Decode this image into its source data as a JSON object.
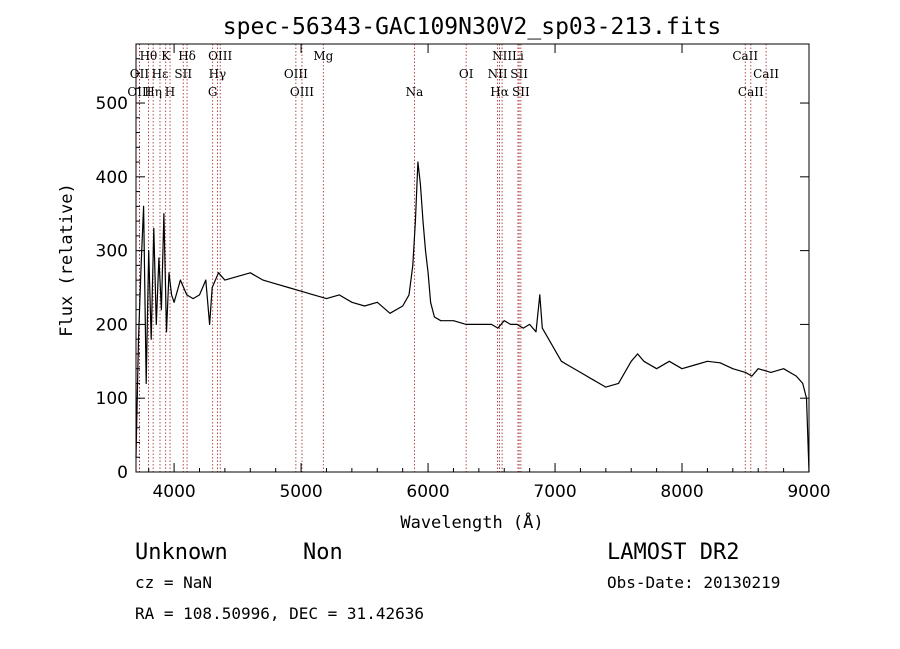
{
  "chart_data": {
    "type": "line",
    "title": "spec-56343-GAC109N30V2_sp03-213.fits",
    "xlabel": "Wavelength (Å)",
    "ylabel": "Flux (relative)",
    "xlim": [
      3700,
      9000
    ],
    "ylim": [
      0,
      580
    ],
    "x_ticks": [
      4000,
      5000,
      6000,
      7000,
      8000,
      9000
    ],
    "y_ticks": [
      0,
      100,
      200,
      300,
      400,
      500
    ],
    "series": [
      {
        "name": "flux",
        "x": [
          3700,
          3720,
          3740,
          3760,
          3780,
          3800,
          3820,
          3840,
          3860,
          3880,
          3900,
          3920,
          3940,
          3960,
          3980,
          4000,
          4050,
          4100,
          4150,
          4200,
          4250,
          4280,
          4300,
          4350,
          4400,
          4500,
          4600,
          4700,
          4800,
          4900,
          5000,
          5100,
          5200,
          5300,
          5400,
          5500,
          5600,
          5700,
          5800,
          5850,
          5880,
          5900,
          5920,
          5940,
          5960,
          5980,
          6000,
          6020,
          6050,
          6100,
          6200,
          6300,
          6400,
          6500,
          6550,
          6600,
          6650,
          6700,
          6750,
          6800,
          6850,
          6880,
          6900,
          6950,
          7000,
          7050,
          7100,
          7200,
          7300,
          7400,
          7500,
          7600,
          7650,
          7700,
          7800,
          7900,
          8000,
          8100,
          8200,
          8300,
          8400,
          8500,
          8550,
          8600,
          8700,
          8800,
          8900,
          8950,
          8980,
          9000
        ],
        "values": [
          20,
          180,
          280,
          360,
          120,
          300,
          180,
          330,
          200,
          290,
          220,
          350,
          190,
          270,
          240,
          230,
          260,
          240,
          235,
          240,
          260,
          200,
          250,
          270,
          260,
          265,
          270,
          260,
          255,
          250,
          245,
          240,
          235,
          240,
          230,
          225,
          230,
          215,
          225,
          240,
          280,
          340,
          420,
          390,
          340,
          300,
          270,
          230,
          210,
          205,
          205,
          200,
          200,
          200,
          195,
          205,
          200,
          200,
          195,
          200,
          190,
          240,
          195,
          180,
          165,
          150,
          145,
          135,
          125,
          115,
          120,
          150,
          160,
          150,
          140,
          150,
          140,
          145,
          150,
          148,
          140,
          135,
          130,
          140,
          135,
          140,
          130,
          120,
          100,
          0
        ]
      }
    ],
    "spectral_lines": [
      {
        "label": "Hθ",
        "x": 3798,
        "row": 0
      },
      {
        "label": "K",
        "x": 3934,
        "row": 0
      },
      {
        "label": "Hδ",
        "x": 4102,
        "row": 0
      },
      {
        "label": "OIII",
        "x": 4363,
        "row": 0
      },
      {
        "label": "Mg",
        "x": 5175,
        "row": 0
      },
      {
        "label": "NII",
        "x": 6583,
        "row": 0
      },
      {
        "label": "Li",
        "x": 6708,
        "row": 0
      },
      {
        "label": "CaII",
        "x": 8498,
        "row": 0
      },
      {
        "label": "OII",
        "x": 3727,
        "row": 1
      },
      {
        "label": "Hε",
        "x": 3889,
        "row": 1
      },
      {
        "label": "SII",
        "x": 4072,
        "row": 1
      },
      {
        "label": "Hγ",
        "x": 4341,
        "row": 1
      },
      {
        "label": "OIII",
        "x": 4959,
        "row": 1
      },
      {
        "label": "OI",
        "x": 6300,
        "row": 1
      },
      {
        "label": "NII",
        "x": 6548,
        "row": 1
      },
      {
        "label": "SII",
        "x": 6717,
        "row": 1
      },
      {
        "label": "CaII",
        "x": 8662,
        "row": 1
      },
      {
        "label": "OIII",
        "x": 3727,
        "row": 2
      },
      {
        "label": "Hη",
        "x": 3835,
        "row": 2
      },
      {
        "label": "H",
        "x": 3968,
        "row": 2
      },
      {
        "label": "G",
        "x": 4304,
        "row": 2
      },
      {
        "label": "OIII",
        "x": 5007,
        "row": 2
      },
      {
        "label": "Na",
        "x": 5893,
        "row": 2
      },
      {
        "label": "Hα",
        "x": 6563,
        "row": 2
      },
      {
        "label": "SII",
        "x": 6731,
        "row": 2
      },
      {
        "label": "CaII",
        "x": 8542,
        "row": 2
      }
    ],
    "line_color": "#000000",
    "marker_line_color": "#a02020"
  },
  "info": {
    "class_label": "Unknown",
    "subclass_label": "Non",
    "survey": "LAMOST DR2",
    "cz": "cz = NaN",
    "obs_date": "Obs-Date: 20130219",
    "coords": "RA = 108.50996, DEC =  31.42636"
  }
}
